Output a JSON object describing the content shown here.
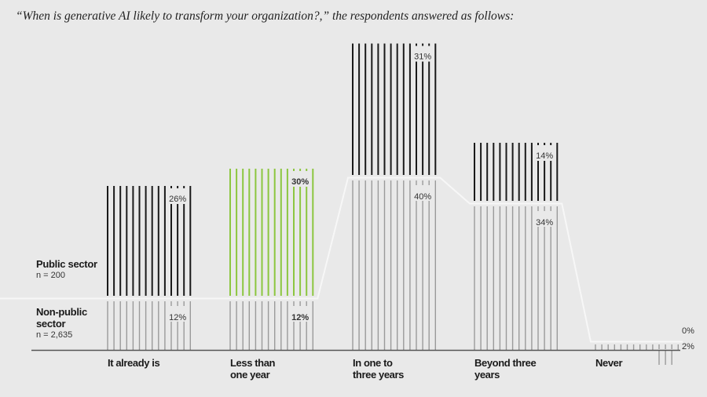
{
  "chart_data": {
    "type": "bar",
    "title": "“When is generative AI likely to transform your organization?,” the respondents answered as follows:",
    "categories": [
      "It already is",
      "Less than one year",
      "In one to three years",
      "Beyond three years",
      "Never"
    ],
    "categories_lines": [
      [
        "It already is"
      ],
      [
        "Less than",
        "one year"
      ],
      [
        "In one to",
        "three years"
      ],
      [
        "Beyond three",
        "years"
      ],
      [
        "Never"
      ]
    ],
    "series": [
      {
        "name": "Public sector",
        "n": "n = 200",
        "values": [
          26,
          30,
          31,
          14,
          0
        ],
        "labels": [
          "26%",
          "30%",
          "31%",
          "14%",
          "0%"
        ]
      },
      {
        "name": "Non-public sector",
        "n": "n = 2,635",
        "values": [
          12,
          12,
          40,
          34,
          2
        ],
        "labels": [
          "12%",
          "12%",
          "40%",
          "34%",
          "2%"
        ]
      }
    ],
    "stacked": true,
    "highlight_index": 1,
    "colors": {
      "public": "#1a1a1a",
      "nonpublic": "#9a9a9a",
      "highlight": "#8cc63f",
      "divider": "#f7f7f7",
      "axis": "#555555"
    },
    "xlabel": "",
    "ylabel": ""
  }
}
